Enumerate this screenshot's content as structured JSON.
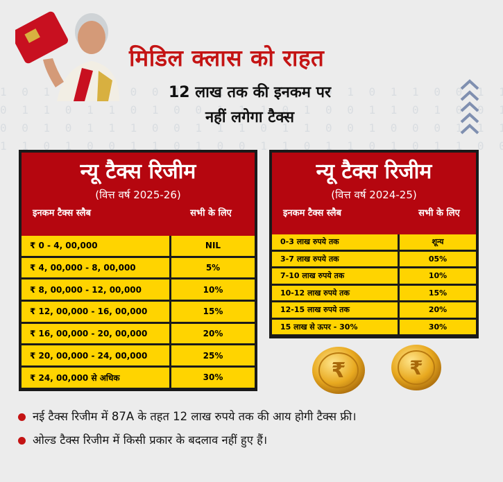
{
  "header": {
    "title": "मिडिल क्लास को राहत",
    "subtitle_line1": "12 लाख तक की इनकम पर",
    "subtitle_line2": "नहीं लगेगा टैक्स"
  },
  "left_table": {
    "title": "न्यू टैक्स रिजीम",
    "year": "(वित्त वर्ष 2025-26)",
    "col_slab": "इनकम टैक्स स्लैब",
    "col_rate": "सभी के लिए",
    "rows": [
      {
        "slab": "₹  0 - 4, 00,000",
        "rate": "NIL"
      },
      {
        "slab": "₹  4, 00,000 - 8, 00,000",
        "rate": "5%"
      },
      {
        "slab": "₹  8, 00,000 - 12, 00,000",
        "rate": "10%"
      },
      {
        "slab": "₹  12, 00,000 - 16, 00,000",
        "rate": "15%"
      },
      {
        "slab": "₹  16, 00,000 - 20, 00,000",
        "rate": "20%"
      },
      {
        "slab": "₹  20, 00,000 -  24, 00,000",
        "rate": "25%"
      },
      {
        "slab": "₹  24, 00,000  से अधिक",
        "rate": "30%"
      }
    ]
  },
  "right_table": {
    "title": "न्यू टैक्स रिजीम",
    "year": "(वित्त वर्ष 2024-25)",
    "col_slab": "इनकम टैक्स स्लैब",
    "col_rate": "सभी के लिए",
    "rows": [
      {
        "slab": "0-3 लाख रुपये तक",
        "rate": "शून्य"
      },
      {
        "slab": "3-7 लाख रुपये तक",
        "rate": "05%"
      },
      {
        "slab": "7-10 लाख रुपये तक",
        "rate": "10%"
      },
      {
        "slab": "10-12 लाख रुपये तक",
        "rate": "15%"
      },
      {
        "slab": "12-15 लाख रुपये तक",
        "rate": "20%"
      },
      {
        "slab": "15 लाख से ऊपर - 30%",
        "rate": "30%"
      }
    ]
  },
  "bullets": [
    "नई टैक्स रिजीम में 87A के तहत 12 लाख रुपये तक की आय होगी टैक्स फ्री।",
    "ओल्ड टैक्स रिजीम में किसी प्रकार के बदलाव नहीं हुए हैं।"
  ],
  "colors": {
    "accent_red": "#b5060f",
    "title_red": "#c41414",
    "cell_yellow": "#ffd400",
    "border_dark": "#1a1a1a"
  },
  "icons": [
    "finance-minister-portrait",
    "chevron-up-icon",
    "rupee-coin-icon"
  ]
}
